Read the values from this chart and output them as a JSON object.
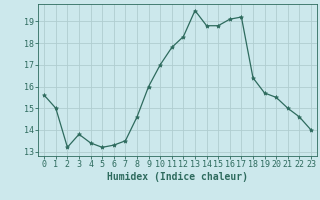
{
  "x": [
    0,
    1,
    2,
    3,
    4,
    5,
    6,
    7,
    8,
    9,
    10,
    11,
    12,
    13,
    14,
    15,
    16,
    17,
    18,
    19,
    20,
    21,
    22,
    23
  ],
  "y": [
    15.6,
    15.0,
    13.2,
    13.8,
    13.4,
    13.2,
    13.3,
    13.5,
    14.6,
    16.0,
    17.0,
    17.8,
    18.3,
    19.5,
    18.8,
    18.8,
    19.1,
    19.2,
    16.4,
    15.7,
    15.5,
    15.0,
    14.6,
    14.0
  ],
  "line_color": "#2e6b5e",
  "marker": "*",
  "marker_size": 3,
  "bg_color": "#cce8ec",
  "grid_color": "#b0cdd0",
  "xlabel": "Humidex (Indice chaleur)",
  "xlim": [
    -0.5,
    23.5
  ],
  "ylim": [
    12.8,
    19.8
  ],
  "yticks": [
    13,
    14,
    15,
    16,
    17,
    18,
    19
  ],
  "xticks": [
    0,
    1,
    2,
    3,
    4,
    5,
    6,
    7,
    8,
    9,
    10,
    11,
    12,
    13,
    14,
    15,
    16,
    17,
    18,
    19,
    20,
    21,
    22,
    23
  ],
  "tick_color": "#2e6b5e",
  "label_color": "#2e6b5e",
  "xlabel_fontsize": 7,
  "tick_fontsize": 6
}
